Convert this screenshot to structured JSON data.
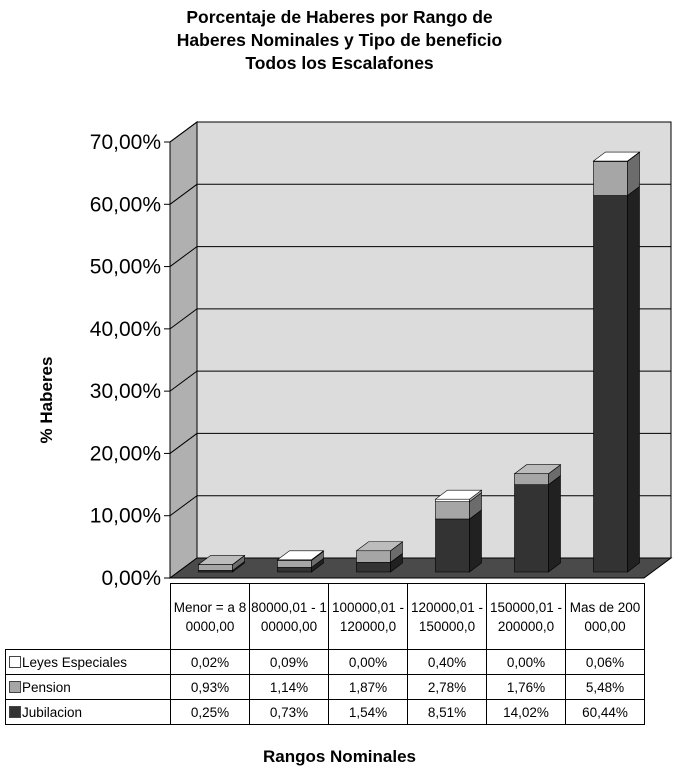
{
  "chart_data": {
    "type": "bar",
    "stacked": true,
    "title_lines": [
      "Porcentaje de Haberes por Rango de",
      "Haberes Nominales y Tipo de beneficio",
      "Todos los Escalafones"
    ],
    "ylabel": "% Haberes",
    "xlabel": "Rangos Nominales",
    "ylim": [
      0,
      70
    ],
    "yticks": [
      "0,00%",
      "10,00%",
      "20,00%",
      "30,00%",
      "40,00%",
      "50,00%",
      "60,00%",
      "70,00%"
    ],
    "categories": [
      "Menor = a 80000,00",
      "80000,01 - 100000,00",
      "100000,01 - 120000,0",
      "120000,01 - 150000,0",
      "150000,01 - 200000,0",
      "Mas de 200000,00"
    ],
    "series": [
      {
        "name": "Leyes Especiales",
        "color": "#ffffff",
        "values": [
          0.02,
          0.09,
          0.0,
          0.4,
          0.0,
          0.06
        ],
        "labels": [
          "0,02%",
          "0,09%",
          "0,00%",
          "0,40%",
          "0,00%",
          "0,06%"
        ]
      },
      {
        "name": "Pension",
        "color": "#a6a6a6",
        "values": [
          0.93,
          1.14,
          1.87,
          2.78,
          1.76,
          5.48
        ],
        "labels": [
          "0,93%",
          "1,14%",
          "1,87%",
          "2,78%",
          "1,76%",
          "5,48%"
        ]
      },
      {
        "name": "Jubilacion",
        "color": "#333333",
        "values": [
          0.25,
          0.73,
          1.54,
          8.51,
          14.02,
          60.44
        ],
        "labels": [
          "0,25%",
          "0,73%",
          "1,54%",
          "8,51%",
          "14,02%",
          "60,44%"
        ]
      }
    ],
    "grid": true,
    "legend": "data-table"
  }
}
